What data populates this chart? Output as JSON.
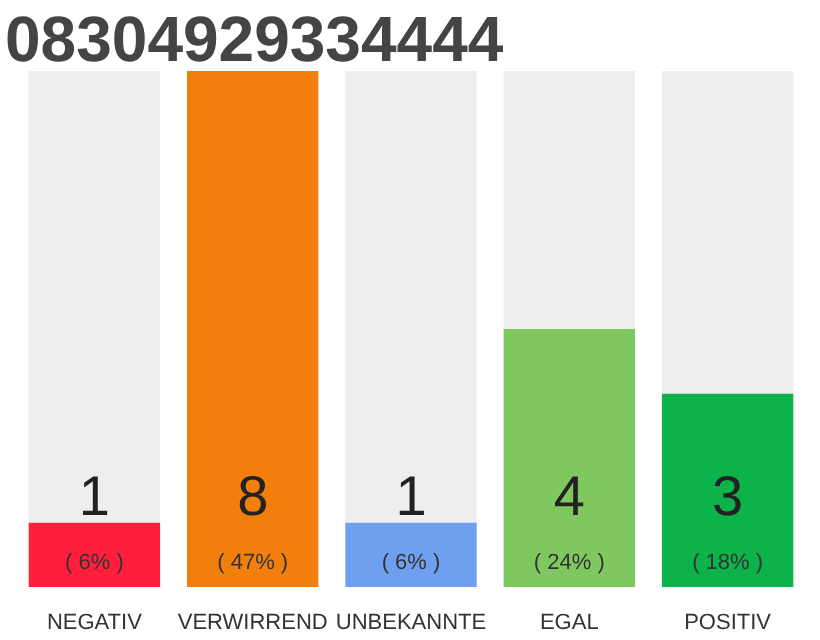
{
  "chart_data": {
    "type": "bar",
    "title": "08304929334444",
    "tick_labels": "x",
    "stacked": true,
    "categories": [
      "NEGATIV",
      "VERWIRREND",
      "UNBEKANNTE",
      "EGAL",
      "POSITIV"
    ],
    "series": [
      {
        "colors": [
          "#ff1f3d",
          "#f27f0c",
          "#6ea0ef",
          "#7ec85f",
          "#0cb34b"
        ],
        "values": [
          1,
          8,
          1,
          4,
          3
        ],
        "value_labels": [
          "1",
          "8",
          "1",
          "4",
          "3"
        ]
      },
      {
        "color": "#eeeeee",
        "values": [
          7,
          0,
          7,
          4,
          5
        ]
      }
    ],
    "annotations": [
      {
        "text": "( 6% )",
        "x": "NEGATIV",
        "y": 0
      },
      {
        "text": "( 47% )",
        "x": "VERWIRREND",
        "y": 0
      },
      {
        "text": "( 6% )",
        "x": "UNBEKANNTE",
        "y": 0
      },
      {
        "text": "( 24% )",
        "x": "EGAL",
        "y": 0
      },
      {
        "text": "( 18% )",
        "x": "POSITIV",
        "y": 0
      }
    ]
  }
}
